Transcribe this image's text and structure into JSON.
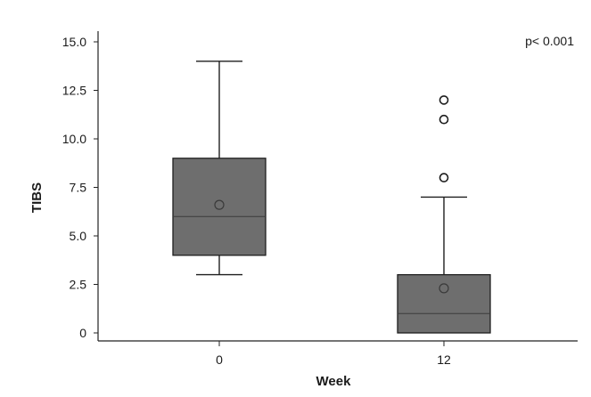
{
  "chart_data": {
    "type": "box",
    "xlabel": "Week",
    "ylabel": "TIBS",
    "annotation": "p< 0.001",
    "ylim": [
      0,
      15.5
    ],
    "y_ticks": [
      "0",
      "2.5",
      "5.0",
      "7.5",
      "10.0",
      "12.5",
      "15.0"
    ],
    "y_tick_values": [
      0,
      2.5,
      5.0,
      7.5,
      10.0,
      12.5,
      15.0
    ],
    "categories": [
      "0",
      "12"
    ],
    "boxes": [
      {
        "category": "0",
        "min": 3,
        "q1": 4,
        "median": 6,
        "q3": 9,
        "max": 14,
        "mean": 6.6,
        "outliers": []
      },
      {
        "category": "12",
        "min": 0,
        "q1": 0,
        "median": 1,
        "q3": 3,
        "max": 7,
        "mean": 2.3,
        "outliers": [
          8,
          11,
          12
        ]
      }
    ],
    "grid": false,
    "colors": {
      "box_fill": "#6e6e6e",
      "box_stroke": "#1e1e1e"
    }
  }
}
